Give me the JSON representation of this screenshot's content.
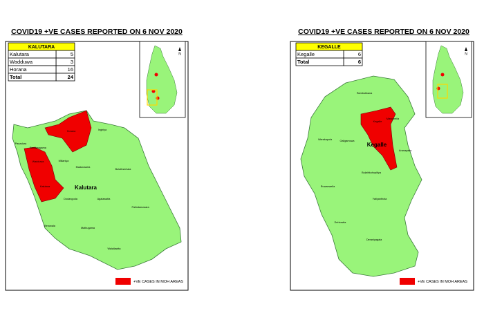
{
  "panels": [
    {
      "title": "COVID19 +VE CASES REPORTED ON 6 NOV 2020",
      "table": {
        "header": "KALUTARA",
        "rows": [
          [
            "Kalutara",
            5
          ],
          [
            "Wadduwa",
            3
          ],
          [
            "Horana",
            16
          ],
          [
            "Total",
            24
          ]
        ]
      },
      "map_labels": [
        "Panadura",
        "Bandaragama",
        "Horana",
        "Ingiriya",
        "Wadduwa",
        "Millaniya",
        "Madurawela",
        "Bulathsinhala",
        "Kalutara",
        "Kalutara",
        "Dodangoda",
        "Agalawatta",
        "Palindanuwara",
        "Beruwala",
        "Mathugama",
        "Walallawita"
      ],
      "north": "N",
      "legend": "+VE CASES IN MOH AREAS"
    },
    {
      "title": "COVID19 +VE CASES REPORTED ON 6 NOV 2020",
      "table": {
        "header": "KEGALLE",
        "rows": [
          [
            "Kegalle",
            6
          ],
          [
            "Total",
            6
          ]
        ]
      },
      "map_labels": [
        "Rambukkana",
        "Mawanella",
        "Galigamuwa",
        "Kegalle",
        "Kegalle",
        "Warakapola",
        "Aranayaka",
        "Ruwanwella",
        "Bulathkohupitiya",
        "Yatiyanthota",
        "Dehiowita",
        "Deraniyagala"
      ],
      "north": "N",
      "legend": "+VE CASES IN MOH AREAS"
    }
  ]
}
